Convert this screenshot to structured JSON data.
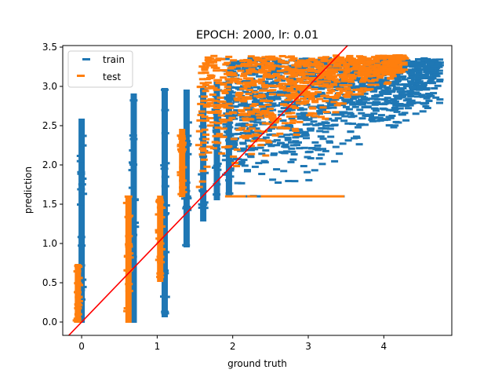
{
  "chart_data": {
    "type": "scatter",
    "title": "EPOCH: 2000, lr: 0.01",
    "xlabel": "ground truth",
    "ylabel": "prediction",
    "xlim": [
      -0.25,
      4.9
    ],
    "ylim": [
      -0.17,
      3.52
    ],
    "xticks": [
      "0",
      "1",
      "2",
      "3",
      "4"
    ],
    "xtick_values": [
      0,
      1,
      2,
      3,
      4
    ],
    "yticks": [
      "0.0",
      "0.5",
      "1.0",
      "1.5",
      "2.0",
      "2.5",
      "3.0",
      "3.5"
    ],
    "ytick_values": [
      0,
      0.5,
      1.0,
      1.5,
      2.0,
      2.5,
      3.0,
      3.5
    ],
    "grid": false,
    "legend": "upper-left",
    "marker": "horizontal-dash",
    "series": [
      {
        "name": "train",
        "color": "#1f77b4",
        "columns": [
          {
            "x": 0.0,
            "ymin": 0.0,
            "ymax": 2.58
          },
          {
            "x": 0.69,
            "ymin": 0.0,
            "ymax": 2.9
          },
          {
            "x": 1.1,
            "ymin": 0.07,
            "ymax": 2.97
          },
          {
            "x": 1.39,
            "ymin": 0.96,
            "ymax": 2.95
          },
          {
            "x": 1.61,
            "ymin": 1.29,
            "ymax": 3.0
          },
          {
            "x": 1.79,
            "ymin": 1.56,
            "ymax": 3.05
          },
          {
            "x": 1.95,
            "ymin": 1.6,
            "ymax": 3.07
          }
        ],
        "cloud": {
          "xmin": 1.9,
          "xmax": 4.75,
          "ymin": 1.52,
          "ymax": 3.37
        }
      },
      {
        "name": "test",
        "color": "#ff7f0e",
        "columns": [
          {
            "x": -0.05,
            "ymin": 0.0,
            "ymax": 0.73
          },
          {
            "x": 0.62,
            "ymin": 0.0,
            "ymax": 1.6
          },
          {
            "x": 1.04,
            "ymin": 0.52,
            "ymax": 1.6
          },
          {
            "x": 1.33,
            "ymin": 1.6,
            "ymax": 2.45
          }
        ],
        "cloud": {
          "xmin": 1.55,
          "xmax": 4.3,
          "ymin": 1.27,
          "ymax": 3.4
        }
      }
    ],
    "reference_line": {
      "color": "#ff0000",
      "slope": 1,
      "intercept": 0
    }
  }
}
